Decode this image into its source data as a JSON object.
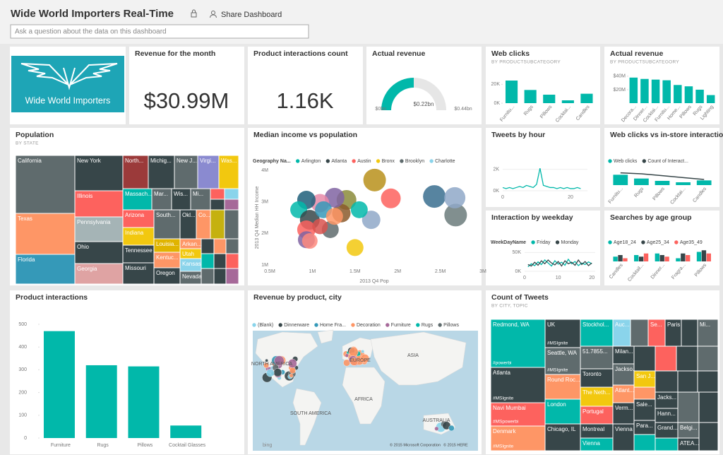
{
  "header": {
    "title": "Wide World Importers Real-Time",
    "share": "Share Dashboard",
    "search_placeholder": "Ask a question about the data on this dashboard"
  },
  "tiles": {
    "logo": {
      "text": "Wide World Importers"
    },
    "revenue": {
      "title": "Revenue for the month",
      "value": "$30.99M"
    },
    "interactions_count": {
      "title": "Product interactions count",
      "value": "1.16K"
    },
    "gauge": {
      "title": "Actual revenue",
      "type": "gauge",
      "value": 0.22,
      "value_label": "$0.22bn",
      "min": {
        "value": 0,
        "label": "$0bn"
      },
      "max": {
        "value": 0.44,
        "label": "$0.44bn"
      },
      "color": "#01b8aa"
    },
    "web_clicks": {
      "title": "Web clicks",
      "subtitle": "BY PRODUCTSUBCATEGORY",
      "type": "bar",
      "categories": [
        "Furnitu...",
        "Rugs",
        "Pillows",
        "Cocktai...",
        "Candles"
      ],
      "values": [
        24,
        14,
        9,
        3,
        10
      ],
      "ylim": [
        0,
        27
      ],
      "yticks": [
        {
          "value": 0,
          "label": "0K"
        },
        {
          "value": 20,
          "label": "20K"
        }
      ],
      "color": "#01b8aa"
    },
    "actual_revenue": {
      "title": "Actual revenue",
      "subtitle": "BY PRODUCTSUBCATEGORY",
      "type": "bar",
      "categories": [
        "Decora...",
        "Dinner...",
        "Cocktai...",
        "Furnitu...",
        "Home...",
        "Pillows",
        "Rugs",
        "Lighting"
      ],
      "values": [
        38,
        36,
        35,
        34,
        27,
        25,
        20,
        12
      ],
      "ylim": [
        0,
        42
      ],
      "yticks": [
        {
          "value": 20,
          "label": "$20M"
        },
        {
          "value": 40,
          "label": "$40M"
        }
      ],
      "color": "#01b8aa"
    },
    "population": {
      "title": "Population",
      "subtitle": "BY STATE",
      "type": "treemap",
      "items": [
        {
          "label": "California",
          "color": "#5f6b6d"
        },
        {
          "label": "New York",
          "color": "#374649"
        },
        {
          "label": "North...",
          "color": "#9b3a3a"
        },
        {
          "label": "Michig...",
          "color": "#374649"
        },
        {
          "label": "New J...",
          "color": "#5f6b6d"
        },
        {
          "label": "Virgi...",
          "color": "#8a8ad0"
        },
        {
          "label": "Was...",
          "color": "#f2c80f"
        },
        {
          "label": "Texas",
          "color": "#fe9666"
        },
        {
          "label": "Illinois",
          "color": "#fd625e"
        },
        {
          "label": "Massach...",
          "color": "#01b8aa"
        },
        {
          "label": "Mar...",
          "color": "#5f6b6d"
        },
        {
          "label": "Wis...",
          "color": "#374649"
        },
        {
          "label": "Mi...",
          "color": "#5f6b6d"
        },
        {
          "label": "Arizona",
          "color": "#fd625e"
        },
        {
          "label": "Pennsylvania",
          "color": "#a5b4b6"
        },
        {
          "label": "Indiana",
          "color": "#f2c80f"
        },
        {
          "label": "South...",
          "color": "#5f6b6d"
        },
        {
          "label": "Okl...",
          "color": "#374649"
        },
        {
          "label": "Co...",
          "color": "#fe9666"
        },
        {
          "label": "Ohio",
          "color": "#374649"
        },
        {
          "label": "Louisia...",
          "color": "#e0b400"
        },
        {
          "label": "Arkan...",
          "color": "#fe9666"
        },
        {
          "label": "Utah",
          "color": "#f2c80f"
        },
        {
          "label": "Tennessee",
          "color": "#374649"
        },
        {
          "label": "Kentuc...",
          "color": "#fe9666"
        },
        {
          "label": "Kansas",
          "color": "#8ad4eb"
        },
        {
          "label": "Florida",
          "color": "#3599b8"
        },
        {
          "label": "Georgia",
          "color": "#dfa3a3"
        },
        {
          "label": "Missouri",
          "color": "#374649"
        },
        {
          "label": "Oregon",
          "color": "#374649"
        },
        {
          "label": "Nevada",
          "color": "#5f6b6d"
        },
        {
          "color": "#fd625e"
        },
        {
          "color": "#8ad4eb"
        },
        {
          "color": "#374649"
        },
        {
          "color": "#a66999"
        },
        {
          "color": "#c5b10f"
        },
        {
          "color": "#5f6b6d"
        },
        {
          "color": "#374649"
        },
        {
          "color": "#fe9666"
        },
        {
          "color": "#5f6b6d"
        },
        {
          "color": "#01b8aa"
        },
        {
          "color": "#374649"
        },
        {
          "color": "#fd625e"
        },
        {
          "color": "#5f6b6d"
        },
        {
          "color": "#374649"
        },
        {
          "color": "#a66999"
        }
      ]
    },
    "income_scatter": {
      "title": "Median income vs population",
      "type": "scatter",
      "legend_title": "Geography Na...",
      "legend": [
        {
          "name": "Arlington",
          "color": "#01b8aa"
        },
        {
          "name": "Atlanta",
          "color": "#374649"
        },
        {
          "name": "Austin",
          "color": "#fd625e"
        },
        {
          "name": "Bronx",
          "color": "#f2c80f"
        },
        {
          "name": "Brooklyn",
          "color": "#5f6b6d"
        },
        {
          "name": "Charlotte",
          "color": "#8ad4eb"
        }
      ],
      "xlabel": "2013 Q4 Pop",
      "ylabel": "2013 Q4 Median HH Income",
      "points": {
        "x": [
          1.73,
          1.5,
          2.43,
          2.68,
          2.67,
          1.92,
          1.69,
          1.4,
          1.55,
          1.34,
          1.26,
          1.09,
          0.93,
          0.84,
          0.97,
          0.93,
          0.93,
          0.97,
          1.13,
          1.21,
          1.09,
          1.26
        ],
        "y": [
          3.69,
          1.55,
          3.17,
          2.58,
          3.13,
          3.11,
          2.43,
          3.06,
          2.75,
          2.64,
          3.13,
          2.96,
          3.06,
          2.75,
          2.43,
          2.12,
          1.8,
          1.76,
          2.75,
          2.12,
          2.22,
          2.54
        ],
        "size": [
          16,
          12,
          16,
          16,
          15,
          14,
          13,
          14,
          12,
          13,
          14,
          13,
          13,
          12,
          14,
          13,
          12,
          11,
          12,
          12,
          11,
          12
        ],
        "color": [
          "#b8901b",
          "#f2c80f",
          "#3a6f8f",
          "#6b7b7b",
          "#8fa8c8",
          "#fd625e",
          "#8fa8c8",
          "#8b8b3a",
          "#01b8aa",
          "#8b5a2b",
          "#8064a2",
          "#e88aa8",
          "#1f5f7a",
          "#01b8aa",
          "#374649",
          "#fd625e",
          "#8064a2",
          "#fd8a7e",
          "#3599b8",
          "#5f6b6d",
          "#d9534f",
          "#fe9666"
        ]
      },
      "xlim": [
        0.5,
        3.0
      ],
      "ylim": [
        1,
        4
      ],
      "xticks": [
        {
          "value": 0.5,
          "label": "0.5M"
        },
        {
          "value": 1,
          "label": "1M"
        },
        {
          "value": 1.5,
          "label": "1.5M"
        },
        {
          "value": 2,
          "label": "2M"
        },
        {
          "value": 2.5,
          "label": "2.5M"
        },
        {
          "value": 3,
          "label": "3M"
        }
      ],
      "yticks": [
        {
          "value": 1,
          "label": "1M"
        },
        {
          "value": 2,
          "label": "2M"
        },
        {
          "value": 3,
          "label": "3M"
        },
        {
          "value": 4,
          "label": "4M"
        }
      ]
    },
    "tweets_hour": {
      "title": "Tweets by hour",
      "type": "line",
      "x": [
        0,
        1,
        2,
        3,
        4,
        5,
        6,
        7,
        8,
        9,
        10,
        11,
        12,
        13,
        14,
        15,
        16,
        17,
        18,
        19,
        20,
        21,
        22,
        23
      ],
      "values": [
        0.3,
        0.2,
        0.3,
        0.2,
        0.3,
        0.4,
        0.3,
        0.5,
        0.4,
        0.3,
        0.6,
        2.1,
        0.5,
        0.4,
        0.3,
        0.3,
        0.2,
        0.3,
        0.2,
        0.3,
        0.2,
        0.2,
        0.3,
        0.2
      ],
      "xlim": [
        0,
        25
      ],
      "ylim": [
        0,
        2.5
      ],
      "xticks": [
        0,
        20
      ],
      "yticks": [
        {
          "value": 0,
          "label": "0K"
        },
        {
          "value": 2,
          "label": "2K"
        }
      ],
      "color": "#01b8aa"
    },
    "clicks_vs_store": {
      "title": "Web clicks vs in-store interactions",
      "type": "combo",
      "categories": [
        "Furnitu...",
        "Rugs",
        "Pillows",
        "Cocktai...",
        "Candles"
      ],
      "series": [
        {
          "name": "Web clicks",
          "color": "#01b8aa",
          "values": [
            22,
            14,
            9,
            6,
            10
          ]
        },
        {
          "name": "Count of Interact...",
          "color": "#374649",
          "values": [
            26,
            24,
            20,
            16,
            12
          ],
          "axis": "y2"
        }
      ],
      "ylim": [
        0,
        30
      ],
      "y2lim": [
        0,
        30
      ]
    },
    "weekday": {
      "title": "Interaction by weekday",
      "type": "line",
      "legend_title": "WeekDayName",
      "x": [
        1,
        2,
        3,
        4,
        5,
        6,
        7,
        8,
        9,
        10,
        11,
        12,
        13,
        14,
        15,
        16,
        17,
        18,
        19,
        20
      ],
      "series": [
        {
          "name": "Friday",
          "color": "#01b8aa",
          "values": [
            12,
            20,
            15,
            25,
            18,
            30,
            22,
            14,
            28,
            19,
            24,
            16,
            32,
            20,
            26,
            15,
            22,
            18,
            25,
            20
          ]
        },
        {
          "name": "Monday",
          "color": "#374649",
          "values": [
            18,
            14,
            24,
            16,
            28,
            20,
            30,
            22,
            17,
            26,
            14,
            28,
            20,
            24,
            16,
            30,
            18,
            26,
            15,
            22
          ]
        }
      ],
      "xlim": [
        0,
        21
      ],
      "ylim": [
        0,
        60
      ],
      "xticks": [
        0,
        10,
        20
      ],
      "yticks": [
        {
          "value": 0,
          "label": "0K"
        },
        {
          "value": 50,
          "label": "50K"
        }
      ]
    },
    "age_group": {
      "title": "Searches by age group",
      "type": "bar",
      "categories": [
        "Candles",
        "Cocktail...",
        "Dinner...",
        "Fragra...",
        "Pillows"
      ],
      "series": [
        {
          "name": "Age18_24",
          "color": "#01b8aa",
          "values": [
            3,
            4,
            5,
            2,
            6
          ]
        },
        {
          "name": "Age25_34",
          "color": "#374649",
          "values": [
            4,
            3,
            4,
            5,
            7
          ]
        },
        {
          "name": "Age35_49",
          "color": "#fd625e",
          "values": [
            2,
            5,
            3,
            4,
            5
          ]
        }
      ],
      "ylim": [
        0,
        8
      ]
    },
    "product_interactions": {
      "title": "Product interactions",
      "type": "bar",
      "categories": [
        "Furniture",
        "Rugs",
        "Pillows",
        "Cocktail Glasses"
      ],
      "values": [
        470,
        320,
        315,
        55
      ],
      "ylim": [
        0,
        500
      ],
      "yticks": [
        0,
        100,
        200,
        300,
        400,
        500
      ],
      "color": "#01b8aa"
    },
    "map": {
      "title": "Revenue by product, city",
      "type": "map",
      "legend": [
        {
          "name": "(Blank)",
          "color": "#8ad4eb"
        },
        {
          "name": "Dinnerware",
          "color": "#374649"
        },
        {
          "name": "Home Fra...",
          "color": "#3599b8"
        },
        {
          "name": "Decoration",
          "color": "#fe9666"
        },
        {
          "name": "Furniture",
          "color": "#a66999"
        },
        {
          "name": "Rugs",
          "color": "#01b8aa"
        },
        {
          "name": "Pillows",
          "color": "#5f6b6d"
        }
      ],
      "labels": [
        "NORTH AMERICA",
        "EUROPE",
        "ASIA",
        "AFRICA",
        "SOUTH AMERICA",
        "AUSTRALIA"
      ],
      "logo": "bing",
      "copyright": "© 2015 Microsoft Corporation",
      "copyright2": "© 2015 HERE"
    },
    "tweets_count": {
      "title": "Count of Tweets",
      "subtitle": "BY CITY, TOPIC",
      "type": "treemap",
      "items": [
        {
          "label": "Redmond, WA",
          "color": "#01b8aa",
          "tag": "#powerbi"
        },
        {
          "label": "Atlanta",
          "color": "#374649",
          "tag": "#MSIgnite"
        },
        {
          "label": "Navi Mumbai",
          "color": "#fd625e",
          "tag": "#MSpowerbi"
        },
        {
          "label": "Denmark",
          "color": "#fe9666",
          "tag": "#MSIgnite"
        },
        {
          "label": "UK",
          "color": "#374649",
          "tag": "#MSIgnite"
        },
        {
          "label": "Seattle, WA",
          "color": "#5f6b6d",
          "tag": "#MSIgnite"
        },
        {
          "label": "Round Roc...",
          "color": "#fe9666"
        },
        {
          "label": "London",
          "color": "#01b8aa"
        },
        {
          "label": "Chicago, IL",
          "color": "#374649"
        },
        {
          "label": "Stockhol...",
          "color": "#01b8aa"
        },
        {
          "label": "51.7855...",
          "color": "#5f6b6d"
        },
        {
          "label": "Toronto",
          "color": "#374649"
        },
        {
          "label": "The Neth...",
          "color": "#f2c80f"
        },
        {
          "label": "Portugal",
          "color": "#fd625e"
        },
        {
          "label": "Montreal",
          "color": "#374649"
        },
        {
          "label": "Vienna",
          "color": "#01b8aa"
        },
        {
          "label": "Auc...",
          "color": "#8ad4eb"
        },
        {
          "label": "Milan...",
          "color": "#374649"
        },
        {
          "label": "Jackso...",
          "color": "#5f6b6d"
        },
        {
          "label": "Atlant...",
          "color": "#fe9666"
        },
        {
          "label": "Verm...",
          "color": "#374649"
        },
        {
          "label": "Vienna",
          "color": "#374649"
        },
        {
          "label": "Se...",
          "color": "#fd625e"
        },
        {
          "label": "Paris",
          "color": "#374649"
        },
        {
          "label": "Mi...",
          "color": "#5f6b6d"
        },
        {
          "label": "San J...",
          "color": "#f2c80f"
        },
        {
          "label": "Sale...",
          "color": "#374649"
        },
        {
          "label": "Para...",
          "color": "#374649"
        },
        {
          "label": "Jacks...",
          "color": "#374649"
        },
        {
          "label": "Hann...",
          "color": "#374649"
        },
        {
          "label": "Grand...",
          "color": "#374649"
        },
        {
          "label": "Belgi...",
          "color": "#5f6b6d"
        },
        {
          "label": "ATEA...",
          "color": "#374649"
        },
        {
          "color": "#5f6b6d"
        },
        {
          "color": "#374649"
        },
        {
          "color": "#374649"
        },
        {
          "color": "#fd625e"
        },
        {
          "color": "#374649"
        },
        {
          "color": "#5f6b6d"
        },
        {
          "color": "#fe9666"
        },
        {
          "color": "#374649"
        },
        {
          "color": "#374649"
        },
        {
          "color": "#374649"
        },
        {
          "color": "#5f6b6d"
        },
        {
          "color": "#374649"
        },
        {
          "color": "#374649"
        },
        {
          "color": "#01b8aa"
        },
        {
          "color": "#01b8aa"
        }
      ]
    }
  }
}
